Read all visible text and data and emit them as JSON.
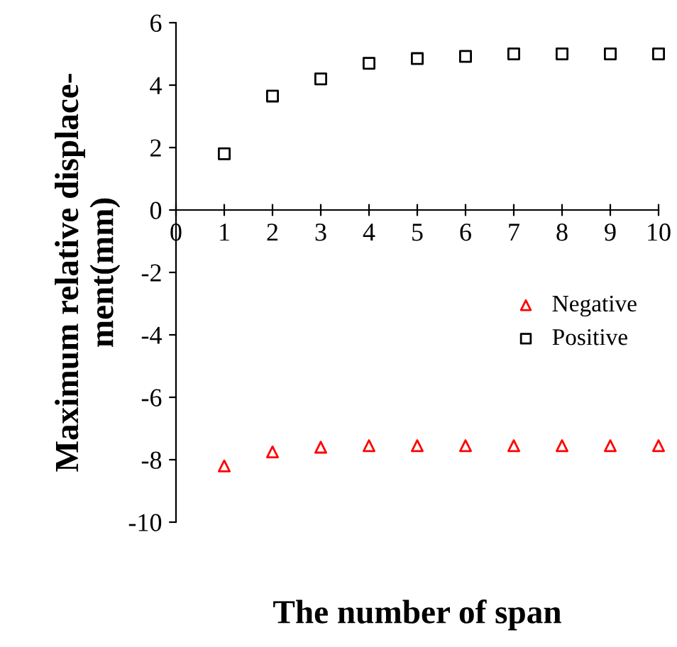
{
  "chart_data": {
    "type": "scatter",
    "xlabel": "The number of span",
    "ylabel": "Maximum relative displace-\nment(mm)",
    "x": [
      1,
      2,
      3,
      4,
      5,
      6,
      7,
      8,
      9,
      10
    ],
    "series": [
      {
        "name": "Negative",
        "color": "#ff0000",
        "marker": "triangle",
        "values": [
          -8.2,
          -7.75,
          -7.6,
          -7.55,
          -7.55,
          -7.55,
          -7.55,
          -7.55,
          -7.55,
          -7.55
        ]
      },
      {
        "name": "Positive",
        "color": "#000000",
        "marker": "square",
        "values": [
          1.8,
          3.65,
          4.2,
          4.7,
          4.85,
          4.92,
          5.0,
          5.0,
          5.0,
          5.0
        ]
      }
    ],
    "xlim": [
      0,
      10
    ],
    "xticks": [
      0,
      1,
      2,
      3,
      4,
      5,
      6,
      7,
      8,
      9,
      10
    ],
    "ylim": [
      -10,
      6
    ],
    "yticks": [
      -10,
      -8,
      -6,
      -4,
      -2,
      0,
      2,
      4,
      6
    ],
    "grid": false,
    "legend": "right"
  }
}
